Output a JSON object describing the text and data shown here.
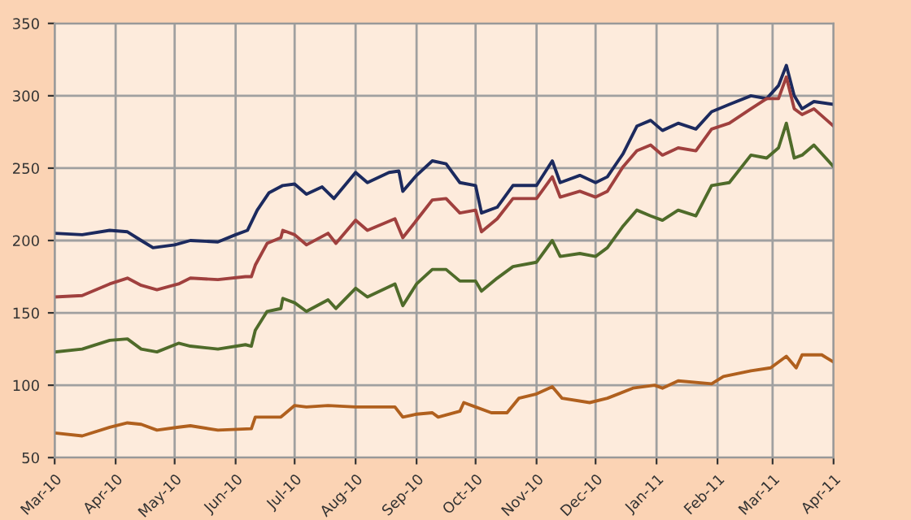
{
  "chart_data": {
    "type": "line",
    "xlim": [
      "2010-03-01",
      "2011-04-01"
    ],
    "ylim": [
      50,
      350
    ],
    "yticks": [
      50,
      100,
      150,
      200,
      250,
      300,
      350
    ],
    "xticks": [
      {
        "value": "2010-03-01",
        "label": "Mar-10"
      },
      {
        "value": "2010-04-01",
        "label": "Apr-10"
      },
      {
        "value": "2010-05-01",
        "label": "May-10"
      },
      {
        "value": "2010-06-01",
        "label": "Jun-10"
      },
      {
        "value": "2010-07-01",
        "label": "Jul-10"
      },
      {
        "value": "2010-08-01",
        "label": "Aug-10"
      },
      {
        "value": "2010-09-01",
        "label": "Sep-10"
      },
      {
        "value": "2010-10-01",
        "label": "Oct-10"
      },
      {
        "value": "2010-11-01",
        "label": "Nov-10"
      },
      {
        "value": "2010-12-01",
        "label": "Dec-10"
      },
      {
        "value": "2011-01-01",
        "label": "Jan-11"
      },
      {
        "value": "2011-02-01",
        "label": "Feb-11"
      },
      {
        "value": "2011-03-01",
        "label": "Mar-11"
      },
      {
        "value": "2011-04-01",
        "label": "Apr-11"
      }
    ],
    "grid": true,
    "marker": "none",
    "line_style": "solid",
    "series": [
      {
        "color": "#1c2a5e",
        "x": [
          "2010-03-01",
          "2010-03-15",
          "2010-03-29",
          "2010-04-07",
          "2010-04-14",
          "2010-04-20",
          "2010-05-01",
          "2010-05-09",
          "2010-05-23",
          "2010-06-01",
          "2010-06-07",
          "2010-06-12",
          "2010-06-18",
          "2010-06-25",
          "2010-07-01",
          "2010-07-07",
          "2010-07-15",
          "2010-07-21",
          "2010-08-01",
          "2010-08-07",
          "2010-08-18",
          "2010-08-23",
          "2010-08-25",
          "2010-09-01",
          "2010-09-09",
          "2010-09-16",
          "2010-09-23",
          "2010-10-01",
          "2010-10-04",
          "2010-10-12",
          "2010-10-20",
          "2010-11-01",
          "2010-11-09",
          "2010-11-13",
          "2010-11-23",
          "2010-12-01",
          "2010-12-07",
          "2010-12-15",
          "2010-12-22",
          "2010-12-29",
          "2011-01-04",
          "2011-01-12",
          "2011-01-21",
          "2011-01-29",
          "2011-02-07",
          "2011-02-18",
          "2011-02-26",
          "2011-03-04",
          "2011-03-08",
          "2011-03-12",
          "2011-03-16",
          "2011-03-22",
          "2011-04-01"
        ],
        "values": [
          205,
          204,
          207,
          206,
          200,
          195,
          197,
          200,
          199,
          204,
          207,
          221,
          233,
          238,
          239,
          232,
          237,
          229,
          247,
          240,
          247,
          248,
          234,
          245,
          255,
          253,
          240,
          238,
          219,
          223,
          238,
          238,
          255,
          240,
          245,
          240,
          244,
          260,
          279,
          283,
          276,
          281,
          277,
          289,
          294,
          300,
          298,
          307,
          321,
          300,
          291,
          296,
          294
        ]
      },
      {
        "color": "#a0403e",
        "x": [
          "2010-03-01",
          "2010-03-15",
          "2010-03-29",
          "2010-04-07",
          "2010-04-14",
          "2010-04-22",
          "2010-05-03",
          "2010-05-09",
          "2010-05-23",
          "2010-06-06",
          "2010-06-09",
          "2010-06-11",
          "2010-06-17",
          "2010-06-24",
          "2010-06-25",
          "2010-07-01",
          "2010-07-07",
          "2010-07-18",
          "2010-07-22",
          "2010-08-01",
          "2010-08-07",
          "2010-08-21",
          "2010-08-25",
          "2010-09-01",
          "2010-09-09",
          "2010-09-16",
          "2010-09-23",
          "2010-10-01",
          "2010-10-04",
          "2010-10-12",
          "2010-10-20",
          "2010-11-01",
          "2010-11-09",
          "2010-11-13",
          "2010-11-23",
          "2010-12-01",
          "2010-12-07",
          "2010-12-15",
          "2010-12-22",
          "2010-12-29",
          "2011-01-04",
          "2011-01-12",
          "2011-01-21",
          "2011-01-29",
          "2011-02-07",
          "2011-02-18",
          "2011-02-26",
          "2011-03-04",
          "2011-03-08",
          "2011-03-12",
          "2011-03-16",
          "2011-03-22",
          "2011-04-01"
        ],
        "values": [
          161,
          162,
          170,
          174,
          169,
          166,
          170,
          174,
          173,
          175,
          175,
          183,
          198,
          202,
          207,
          204,
          197,
          205,
          198,
          214,
          207,
          215,
          202,
          214,
          228,
          229,
          219,
          221,
          206,
          215,
          229,
          229,
          244,
          230,
          234,
          230,
          234,
          251,
          262,
          266,
          259,
          264,
          262,
          277,
          281,
          291,
          298,
          298,
          313,
          291,
          287,
          291,
          279
        ]
      },
      {
        "color": "#4f6b2a",
        "x": [
          "2010-03-01",
          "2010-03-15",
          "2010-03-29",
          "2010-04-07",
          "2010-04-14",
          "2010-04-22",
          "2010-05-03",
          "2010-05-09",
          "2010-05-23",
          "2010-06-06",
          "2010-06-09",
          "2010-06-11",
          "2010-06-17",
          "2010-06-24",
          "2010-06-25",
          "2010-07-01",
          "2010-07-07",
          "2010-07-18",
          "2010-07-22",
          "2010-08-01",
          "2010-08-07",
          "2010-08-21",
          "2010-08-25",
          "2010-09-01",
          "2010-09-09",
          "2010-09-16",
          "2010-09-23",
          "2010-10-01",
          "2010-10-04",
          "2010-10-12",
          "2010-10-20",
          "2010-11-01",
          "2010-11-09",
          "2010-11-13",
          "2010-11-23",
          "2010-12-01",
          "2010-12-07",
          "2010-12-15",
          "2010-12-22",
          "2010-12-29",
          "2011-01-04",
          "2011-01-12",
          "2011-01-21",
          "2011-01-29",
          "2011-02-07",
          "2011-02-18",
          "2011-02-26",
          "2011-03-04",
          "2011-03-08",
          "2011-03-12",
          "2011-03-16",
          "2011-03-22",
          "2011-04-01"
        ],
        "values": [
          123,
          125,
          131,
          132,
          125,
          123,
          129,
          127,
          125,
          128,
          127,
          138,
          151,
          153,
          160,
          157,
          151,
          159,
          153,
          167,
          161,
          170,
          155,
          170,
          180,
          180,
          172,
          172,
          165,
          174,
          182,
          185,
          200,
          189,
          191,
          189,
          195,
          210,
          221,
          217,
          214,
          221,
          217,
          238,
          240,
          259,
          257,
          264,
          281,
          257,
          259,
          266,
          251
        ]
      },
      {
        "color": "#b0601e",
        "x": [
          "2010-03-01",
          "2010-03-15",
          "2010-03-29",
          "2010-04-07",
          "2010-04-14",
          "2010-04-22",
          "2010-05-03",
          "2010-05-09",
          "2010-05-23",
          "2010-06-09",
          "2010-06-11",
          "2010-06-24",
          "2010-07-01",
          "2010-07-07",
          "2010-07-18",
          "2010-08-01",
          "2010-08-21",
          "2010-08-25",
          "2010-09-01",
          "2010-09-09",
          "2010-09-12",
          "2010-09-23",
          "2010-09-25",
          "2010-10-01",
          "2010-10-09",
          "2010-10-17",
          "2010-10-23",
          "2010-11-01",
          "2010-11-09",
          "2010-11-14",
          "2010-11-28",
          "2010-12-07",
          "2010-12-20",
          "2010-12-31",
          "2011-01-04",
          "2011-01-12",
          "2011-01-29",
          "2011-02-04",
          "2011-02-18",
          "2011-02-28",
          "2011-03-08",
          "2011-03-13",
          "2011-03-16",
          "2011-03-26",
          "2011-04-01"
        ],
        "values": [
          67,
          65,
          71,
          74,
          73,
          69,
          71,
          72,
          69,
          70,
          78,
          78,
          86,
          85,
          86,
          85,
          85,
          78,
          80,
          81,
          78,
          82,
          88,
          85,
          81,
          81,
          91,
          94,
          99,
          91,
          88,
          91,
          98,
          100,
          98,
          103,
          101,
          106,
          110,
          112,
          120,
          112,
          121,
          121,
          116
        ]
      }
    ]
  }
}
